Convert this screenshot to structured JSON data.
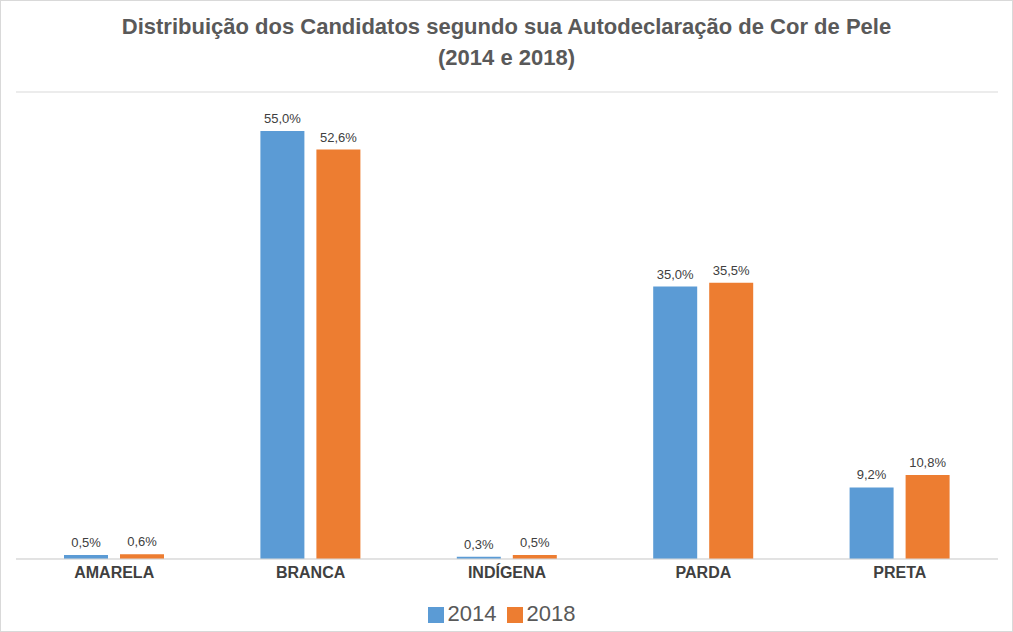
{
  "chart_data": {
    "type": "bar",
    "title": "Distribuição dos Candidatos segundo sua Autodeclaração de Cor de Pele",
    "subtitle": "(2014 e 2018)",
    "categories": [
      "AMARELA",
      "BRANCA",
      "INDÍGENA",
      "PARDA",
      "PRETA"
    ],
    "series": [
      {
        "name": "2014",
        "color": "#5b9bd5",
        "values": [
          0.5,
          55.0,
          0.3,
          35.0,
          9.2
        ],
        "value_labels": [
          "0,5%",
          "55,0%",
          "0,3%",
          "35,0%",
          "9,2%"
        ]
      },
      {
        "name": "2018",
        "color": "#ed7d31",
        "values": [
          0.6,
          52.6,
          0.5,
          35.5,
          10.8
        ],
        "value_labels": [
          "0,6%",
          "52,6%",
          "0,5%",
          "35,5%",
          "10,8%"
        ]
      }
    ],
    "ylim": [
      0,
      60
    ],
    "yticks": [
      0,
      10,
      20,
      30,
      40,
      50,
      60
    ],
    "grid": true,
    "legend": "bottom",
    "data_labels": true,
    "tick_labels": "x"
  }
}
